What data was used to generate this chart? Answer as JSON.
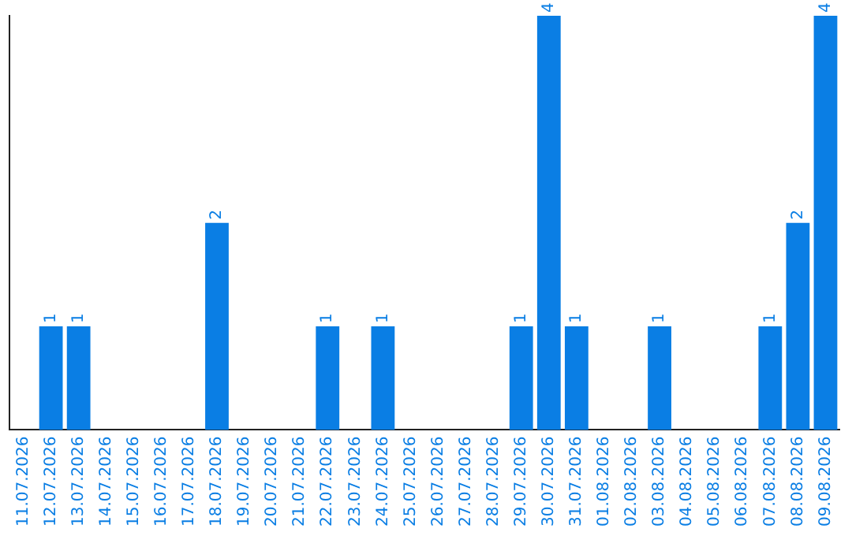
{
  "chart_data": {
    "type": "bar",
    "categories": [
      "11.07.2026",
      "12.07.2026",
      "13.07.2026",
      "14.07.2026",
      "15.07.2026",
      "16.07.2026",
      "17.07.2026",
      "18.07.2026",
      "19.07.2026",
      "20.07.2026",
      "21.07.2026",
      "22.07.2026",
      "23.07.2026",
      "24.07.2026",
      "25.07.2026",
      "26.07.2026",
      "27.07.2026",
      "28.07.2026",
      "29.07.2026",
      "30.07.2026",
      "31.07.2026",
      "01.08.2026",
      "02.08.2026",
      "03.08.2026",
      "04.08.2026",
      "05.08.2026",
      "06.08.2026",
      "07.08.2026",
      "08.08.2026",
      "09.08.2026"
    ],
    "values": [
      0,
      1,
      1,
      0,
      0,
      0,
      0,
      2,
      0,
      0,
      0,
      1,
      0,
      1,
      0,
      0,
      0,
      0,
      1,
      4,
      1,
      0,
      0,
      1,
      0,
      0,
      0,
      1,
      2,
      4
    ],
    "value_labels": [
      null,
      "1",
      "1",
      null,
      null,
      null,
      null,
      "2",
      null,
      null,
      null,
      "1",
      null,
      "1",
      null,
      null,
      null,
      null,
      "1",
      "4",
      "1",
      null,
      null,
      "1",
      null,
      null,
      null,
      "1",
      "2",
      "4"
    ],
    "color": "#0a7ee4",
    "grid": false,
    "legend": false,
    "tick_labels": "x"
  }
}
